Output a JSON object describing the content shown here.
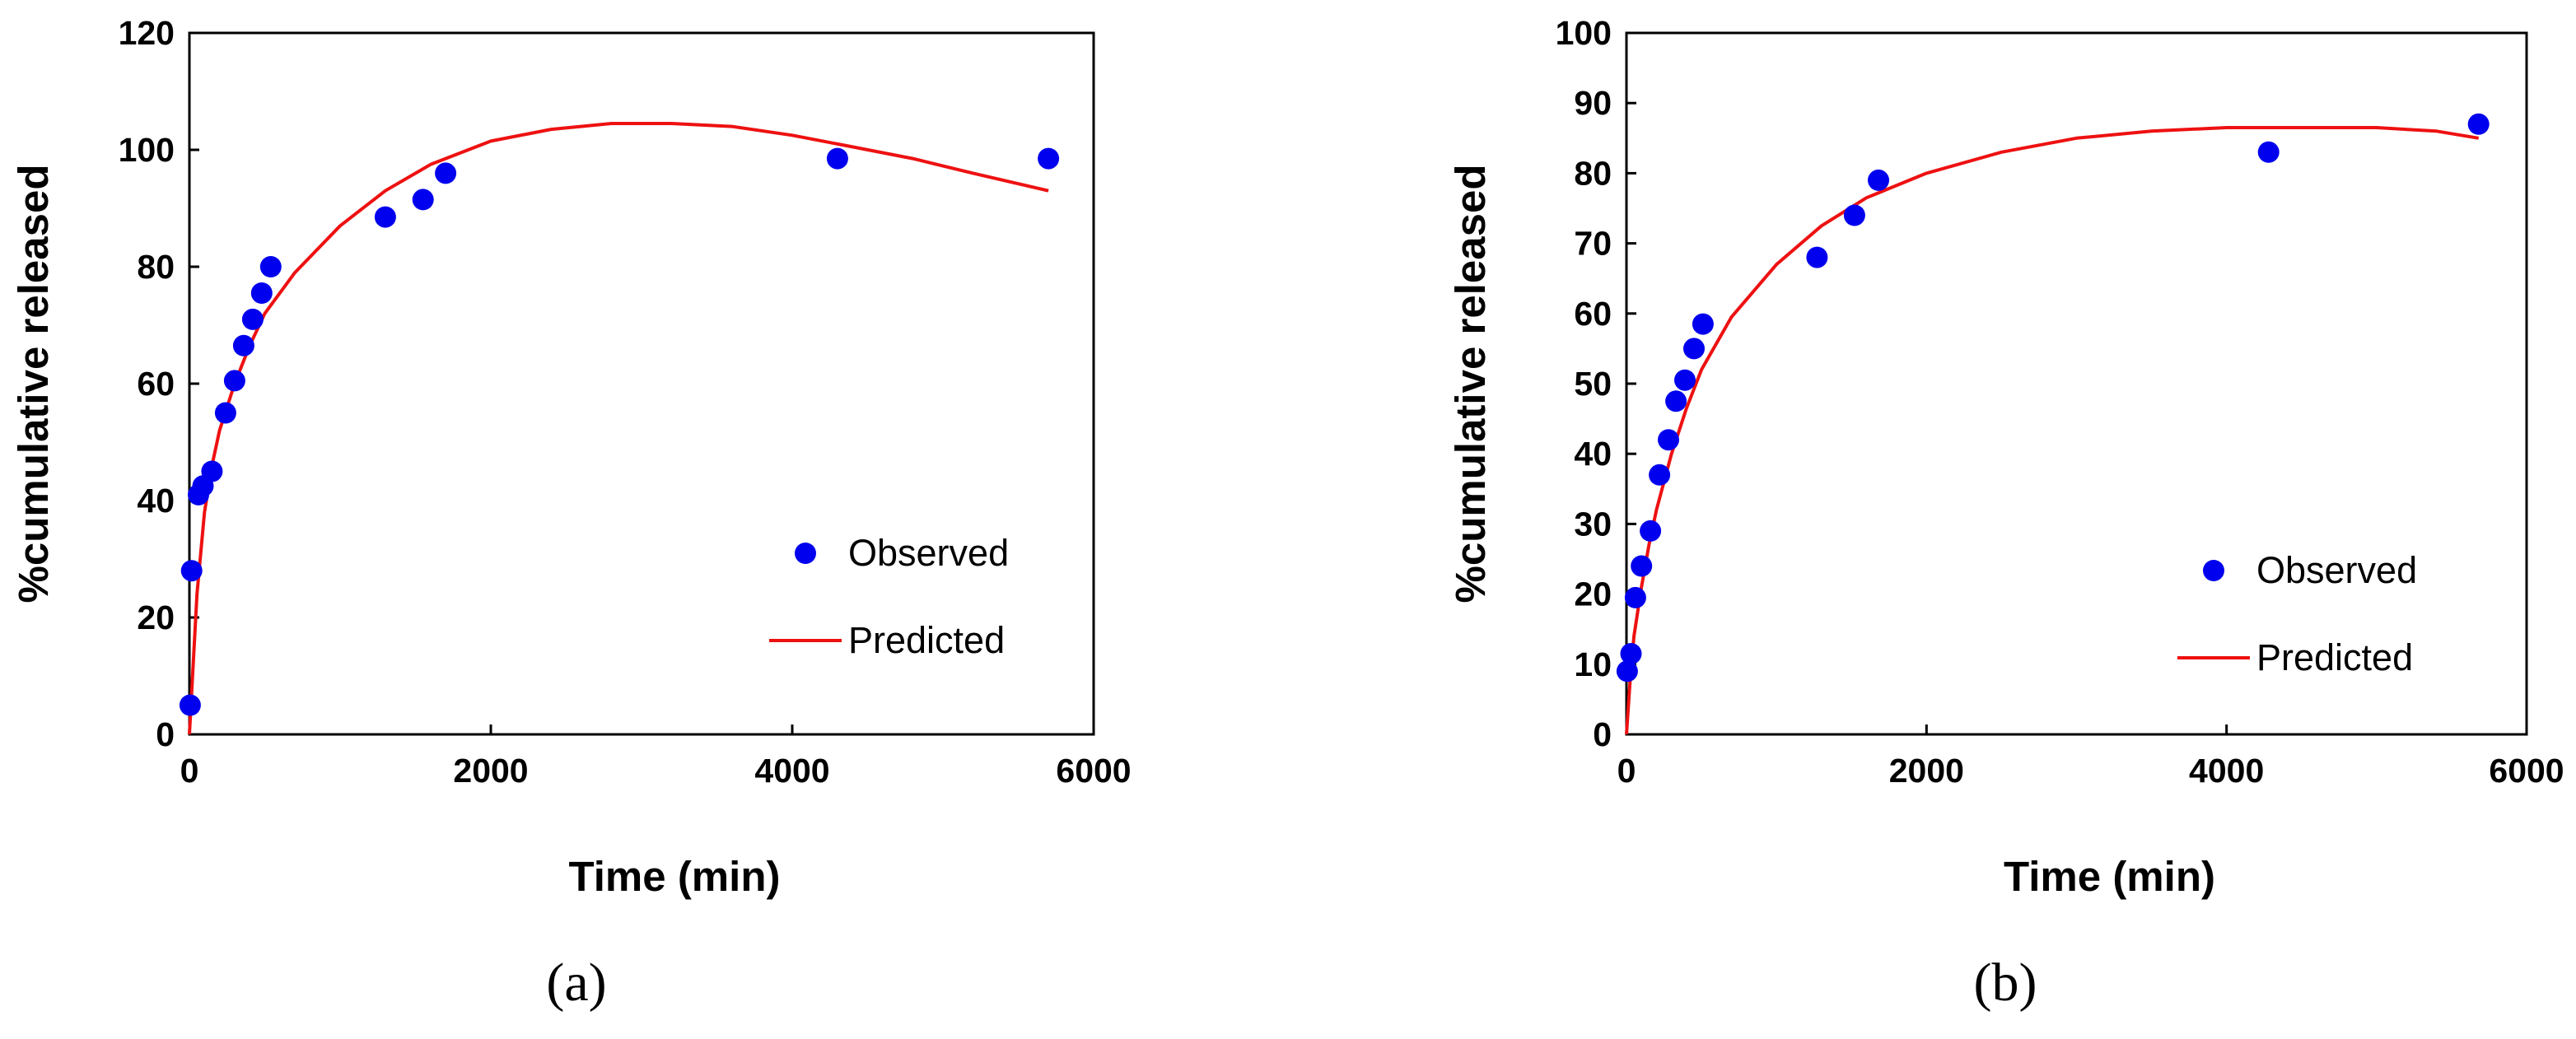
{
  "colors": {
    "observed": "#0000ee",
    "predicted": "#ee1111",
    "axis": "#000000"
  },
  "chart_data": [
    {
      "type": "scatter",
      "panel_label": "(a)",
      "xlabel": "Time (min)",
      "ylabel": "%cumulative released",
      "xlim": [
        0,
        6000
      ],
      "ylim": [
        0,
        120
      ],
      "xticks": [
        0,
        2000,
        4000,
        6000
      ],
      "xtick_labels": [
        "0",
        "2000",
        "4000",
        "6000"
      ],
      "yticks": [
        0,
        20,
        40,
        60,
        80,
        100,
        120
      ],
      "ytick_labels": [
        "0",
        "20",
        "40",
        "60",
        "80",
        "100",
        "120"
      ],
      "legend_position": "right",
      "series": [
        {
          "name": "Observed",
          "kind": "markers",
          "x": [
            5,
            15,
            60,
            90,
            150,
            240,
            300,
            360,
            420,
            480,
            540,
            1300,
            1550,
            1700,
            4300,
            5700
          ],
          "y": [
            5,
            28,
            41,
            42.5,
            45,
            55,
            60.5,
            66.5,
            71,
            75.5,
            80,
            88.5,
            91.5,
            96,
            98.5,
            98.5
          ]
        },
        {
          "name": "Predicted",
          "kind": "line",
          "x": [
            0,
            25,
            50,
            100,
            150,
            200,
            300,
            400,
            500,
            700,
            1000,
            1300,
            1600,
            2000,
            2400,
            2800,
            3200,
            3600,
            4000,
            4400,
            4800,
            5200,
            5700
          ],
          "y": [
            0,
            12,
            24,
            38,
            46,
            52,
            60,
            66.5,
            72,
            79,
            87,
            93,
            97.5,
            101.5,
            103.5,
            104.5,
            104.5,
            104,
            102.5,
            100.5,
            98.5,
            96,
            93
          ]
        }
      ]
    },
    {
      "type": "scatter",
      "panel_label": "(b)",
      "xlabel": "Time (min)",
      "ylabel": "%cumulative released",
      "xlim": [
        0,
        6000
      ],
      "ylim": [
        0,
        100
      ],
      "xticks": [
        0,
        2000,
        4000,
        6000
      ],
      "xtick_labels": [
        "0",
        "2000",
        "4000",
        "6000"
      ],
      "yticks": [
        0,
        10,
        20,
        30,
        40,
        50,
        60,
        70,
        80,
        90,
        100
      ],
      "ytick_labels": [
        "0",
        "10",
        "20",
        "30",
        "40",
        "50",
        "60",
        "70",
        "80",
        "90",
        "100"
      ],
      "legend_position": "right",
      "series": [
        {
          "name": "Observed",
          "kind": "markers",
          "x": [
            5,
            30,
            60,
            100,
            160,
            220,
            280,
            330,
            390,
            450,
            510,
            1270,
            1520,
            1680,
            4280,
            5680
          ],
          "y": [
            9,
            11.5,
            19.5,
            24,
            29,
            37,
            42,
            47.5,
            50.5,
            55,
            58.5,
            68,
            74,
            79,
            83,
            87
          ]
        },
        {
          "name": "Predicted",
          "kind": "line",
          "x": [
            0,
            25,
            50,
            100,
            150,
            200,
            300,
            400,
            500,
            700,
            1000,
            1300,
            1600,
            2000,
            2500,
            3000,
            3500,
            4000,
            4500,
            5000,
            5400,
            5680
          ],
          "y": [
            0,
            8,
            14,
            21,
            27,
            32,
            40,
            46.5,
            52,
            59.5,
            67,
            72.5,
            76.5,
            80,
            83,
            85,
            86,
            86.5,
            86.5,
            86.5,
            86,
            85
          ]
        }
      ]
    }
  ]
}
